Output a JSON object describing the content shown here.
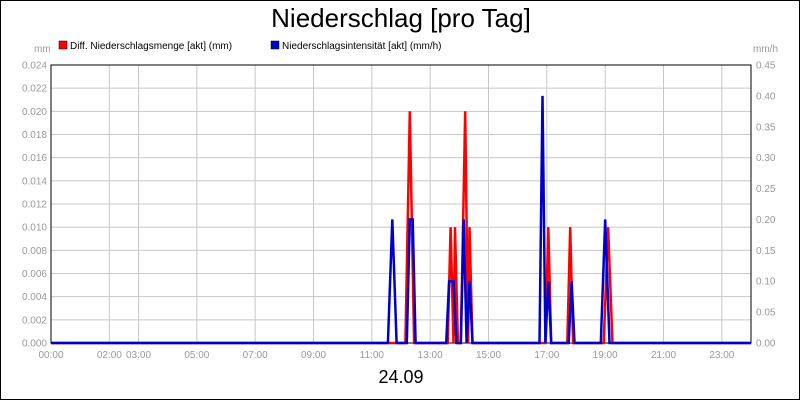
{
  "chart_data": {
    "type": "line",
    "title": "Niederschlag [pro Tag]",
    "date": "24.09",
    "left_axis": {
      "unit": "mm",
      "ylim": [
        0,
        0.024
      ],
      "ticks": [
        "0.000",
        "0.002",
        "0.004",
        "0.006",
        "0.008",
        "0.010",
        "0.012",
        "0.014",
        "0.016",
        "0.018",
        "0.020",
        "0.022",
        "0.024"
      ]
    },
    "right_axis": {
      "unit": "mm/h",
      "ylim": [
        0,
        0.45
      ],
      "ticks": [
        "0.00",
        "0.05",
        "0.10",
        "0.15",
        "0.20",
        "0.25",
        "0.30",
        "0.35",
        "0.40",
        "0.45"
      ]
    },
    "x_axis": {
      "xlim": [
        0,
        24
      ],
      "ticks": [
        {
          "x": 0,
          "label": "00:00"
        },
        {
          "x": 2,
          "label": "02:00"
        },
        {
          "x": 3,
          "label": "03:00"
        },
        {
          "x": 5,
          "label": "05:00"
        },
        {
          "x": 7,
          "label": "07:00"
        },
        {
          "x": 9,
          "label": "09:00"
        },
        {
          "x": 11,
          "label": "11:00"
        },
        {
          "x": 13,
          "label": "13:00"
        },
        {
          "x": 15,
          "label": "15:00"
        },
        {
          "x": 17,
          "label": "17:00"
        },
        {
          "x": 19,
          "label": "19:00"
        },
        {
          "x": 21,
          "label": "21:00"
        },
        {
          "x": 23,
          "label": "23:00"
        }
      ]
    },
    "grid": true,
    "legend_placement": "top-left",
    "series": [
      {
        "name": "Diff. Niederschlagsmenge [akt] (mm)",
        "axis": "left",
        "color": "#ff0000",
        "points": [
          [
            0,
            0
          ],
          [
            12.15,
            0
          ],
          [
            12.3,
            0.02
          ],
          [
            12.45,
            0
          ],
          [
            13.6,
            0
          ],
          [
            13.7,
            0.01
          ],
          [
            13.8,
            0
          ],
          [
            13.85,
            0.01
          ],
          [
            13.95,
            0
          ],
          [
            14.05,
            0
          ],
          [
            14.2,
            0.02
          ],
          [
            14.3,
            0
          ],
          [
            14.35,
            0.01
          ],
          [
            14.45,
            0
          ],
          [
            16.95,
            0
          ],
          [
            17.05,
            0.01
          ],
          [
            17.15,
            0
          ],
          [
            17.7,
            0
          ],
          [
            17.8,
            0.01
          ],
          [
            17.9,
            0
          ],
          [
            18.95,
            0
          ],
          [
            19.1,
            0.01
          ],
          [
            19.25,
            0
          ],
          [
            24,
            0
          ]
        ]
      },
      {
        "name": "Niederschlagsintensität [akt] (mm/h)",
        "axis": "right",
        "color": "#0000cc",
        "points": [
          [
            0,
            0
          ],
          [
            11.55,
            0
          ],
          [
            11.7,
            0.2
          ],
          [
            11.85,
            0
          ],
          [
            12.2,
            0
          ],
          [
            12.3,
            0.2
          ],
          [
            12.4,
            0.2
          ],
          [
            12.5,
            0
          ],
          [
            13.55,
            0
          ],
          [
            13.65,
            0.1
          ],
          [
            13.8,
            0.1
          ],
          [
            13.9,
            0
          ],
          [
            14.05,
            0
          ],
          [
            14.15,
            0.2
          ],
          [
            14.25,
            0
          ],
          [
            14.35,
            0.1
          ],
          [
            14.45,
            0
          ],
          [
            16.75,
            0
          ],
          [
            16.85,
            0.4
          ],
          [
            16.95,
            0
          ],
          [
            17.05,
            0.1
          ],
          [
            17.15,
            0
          ],
          [
            17.75,
            0
          ],
          [
            17.85,
            0.1
          ],
          [
            17.95,
            0
          ],
          [
            18.85,
            0
          ],
          [
            19.0,
            0.2
          ],
          [
            19.15,
            0
          ],
          [
            24,
            0
          ]
        ]
      }
    ]
  }
}
